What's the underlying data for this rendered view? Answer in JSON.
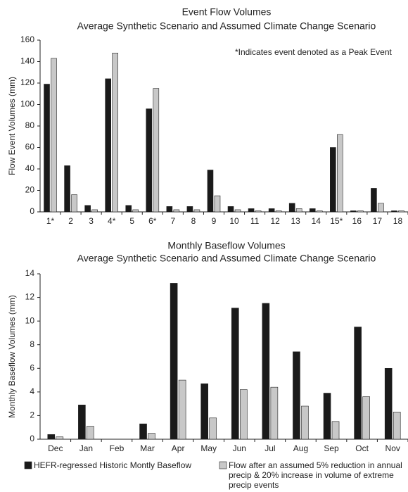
{
  "chart_data": [
    {
      "type": "bar",
      "title": "Event Flow Volumes",
      "subtitle": "Average Synthetic Scenario and Assumed Climate Change Scenario",
      "ylabel": "Flow Event Volumes (mm)",
      "annotation": "*Indicates event denoted as a Peak Event",
      "categories": [
        "1*",
        "2",
        "3",
        "4*",
        "5",
        "6*",
        "7",
        "8",
        "9",
        "10",
        "11",
        "12",
        "13",
        "14",
        "15*",
        "16",
        "17",
        "18"
      ],
      "series": [
        {
          "name": "HEFR-regressed Historic Montly Baseflow",
          "color": "#1a1a1a",
          "values": [
            119,
            43,
            6,
            124,
            6,
            96,
            5,
            5,
            39,
            5,
            3,
            3,
            8,
            3,
            60,
            1,
            22,
            1
          ]
        },
        {
          "name": "Flow after an assumed 5% reduction in annual precip & 20% increase in volume of extreme precip events",
          "color": "#c8c8c8",
          "values": [
            143,
            16,
            2,
            148,
            2,
            115,
            2,
            2,
            15,
            2,
            1,
            1,
            3,
            1,
            72,
            1,
            8,
            1
          ]
        }
      ],
      "ylim": [
        0,
        160
      ],
      "yticks": [
        0,
        20,
        40,
        60,
        80,
        100,
        120,
        140,
        160
      ]
    },
    {
      "type": "bar",
      "title": "Monthly Baseflow Volumes",
      "subtitle": "Average Synthetic Scenario and Assumed Climate Change Scenario",
      "ylabel": "Monthly Baseflow Volumes (mm)",
      "categories": [
        "Dec",
        "Jan",
        "Feb",
        "Mar",
        "Apr",
        "May",
        "Jun",
        "Jul",
        "Aug",
        "Sep",
        "Oct",
        "Nov"
      ],
      "series": [
        {
          "name": "HEFR-regressed Historic Montly Baseflow",
          "color": "#1a1a1a",
          "values": [
            0.4,
            2.9,
            0,
            1.3,
            13.2,
            4.7,
            11.1,
            11.5,
            7.4,
            3.9,
            9.5,
            6.0
          ]
        },
        {
          "name": "Flow after an assumed 5% reduction in annual precip & 20% increase in volume of extreme precip events",
          "color": "#c8c8c8",
          "values": [
            0.2,
            1.1,
            0,
            0.5,
            5.0,
            1.8,
            4.2,
            4.4,
            2.8,
            1.5,
            3.6,
            2.3
          ]
        }
      ],
      "ylim": [
        0,
        14
      ],
      "yticks": [
        0,
        2,
        4,
        6,
        8,
        10,
        12,
        14
      ]
    }
  ]
}
